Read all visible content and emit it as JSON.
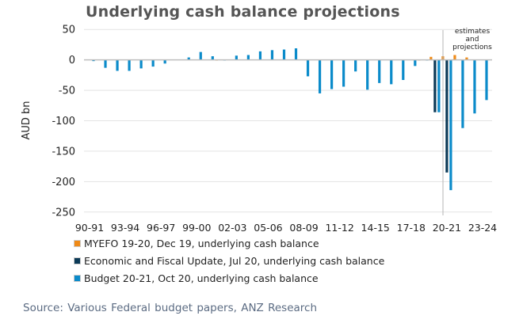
{
  "chart_data": {
    "type": "bar",
    "title": "Underlying cash balance projections",
    "ylabel": "AUD bn",
    "xlabel": "",
    "ylim": [
      -250,
      50
    ],
    "yticks": [
      50,
      0,
      -50,
      -100,
      -150,
      -200,
      -250
    ],
    "grid": true,
    "legend_position": "bottom",
    "categories": [
      "90-91",
      "91-92",
      "92-93",
      "93-94",
      "94-95",
      "95-96",
      "96-97",
      "97-98",
      "98-99",
      "99-00",
      "00-01",
      "01-02",
      "02-03",
      "03-04",
      "04-05",
      "05-06",
      "06-07",
      "07-08",
      "08-09",
      "09-10",
      "10-11",
      "11-12",
      "12-13",
      "13-14",
      "14-15",
      "15-16",
      "16-17",
      "17-18",
      "18-19",
      "19-20",
      "20-21",
      "21-22",
      "22-23",
      "23-24"
    ],
    "xtick_labels": [
      "90-91",
      "93-94",
      "96-97",
      "99-00",
      "02-03",
      "05-06",
      "08-09",
      "11-12",
      "14-15",
      "17-18",
      "20-21",
      "23-24"
    ],
    "series": [
      {
        "name": "MYEFO 19-20, Dec 19, underlying cash balance",
        "color": "#ef8a17",
        "values": [
          null,
          null,
          null,
          null,
          null,
          null,
          null,
          0.8,
          null,
          null,
          null,
          -1,
          null,
          null,
          null,
          null,
          null,
          null,
          null,
          null,
          null,
          null,
          null,
          null,
          null,
          null,
          null,
          null,
          -0.7,
          5,
          6,
          8,
          4,
          null
        ]
      },
      {
        "name": "Economic and Fiscal Update, Jul 20, underlying cash balance",
        "color": "#0c3a57",
        "values": [
          null,
          null,
          null,
          null,
          null,
          null,
          null,
          null,
          null,
          null,
          null,
          null,
          null,
          null,
          null,
          null,
          null,
          null,
          null,
          null,
          null,
          null,
          null,
          null,
          null,
          null,
          null,
          null,
          null,
          -86,
          -185,
          null,
          null,
          null
        ]
      },
      {
        "name": "Budget 20-21, Oct 20, underlying cash balance",
        "color": "#0b8bca",
        "values": [
          -2,
          -13,
          -18,
          -18,
          -14,
          -11,
          -6,
          0.8,
          4,
          13,
          6,
          -1,
          7,
          8,
          14,
          16,
          17,
          19,
          -27,
          -55,
          -48,
          -44,
          -19,
          -49,
          -38,
          -40,
          -33,
          -10,
          -1,
          -86,
          -214,
          -112,
          -88,
          -66
        ]
      }
    ],
    "annotations": [
      "estimates and projections"
    ]
  },
  "source": "Source:  Various Federal budget papers, ANZ Research"
}
